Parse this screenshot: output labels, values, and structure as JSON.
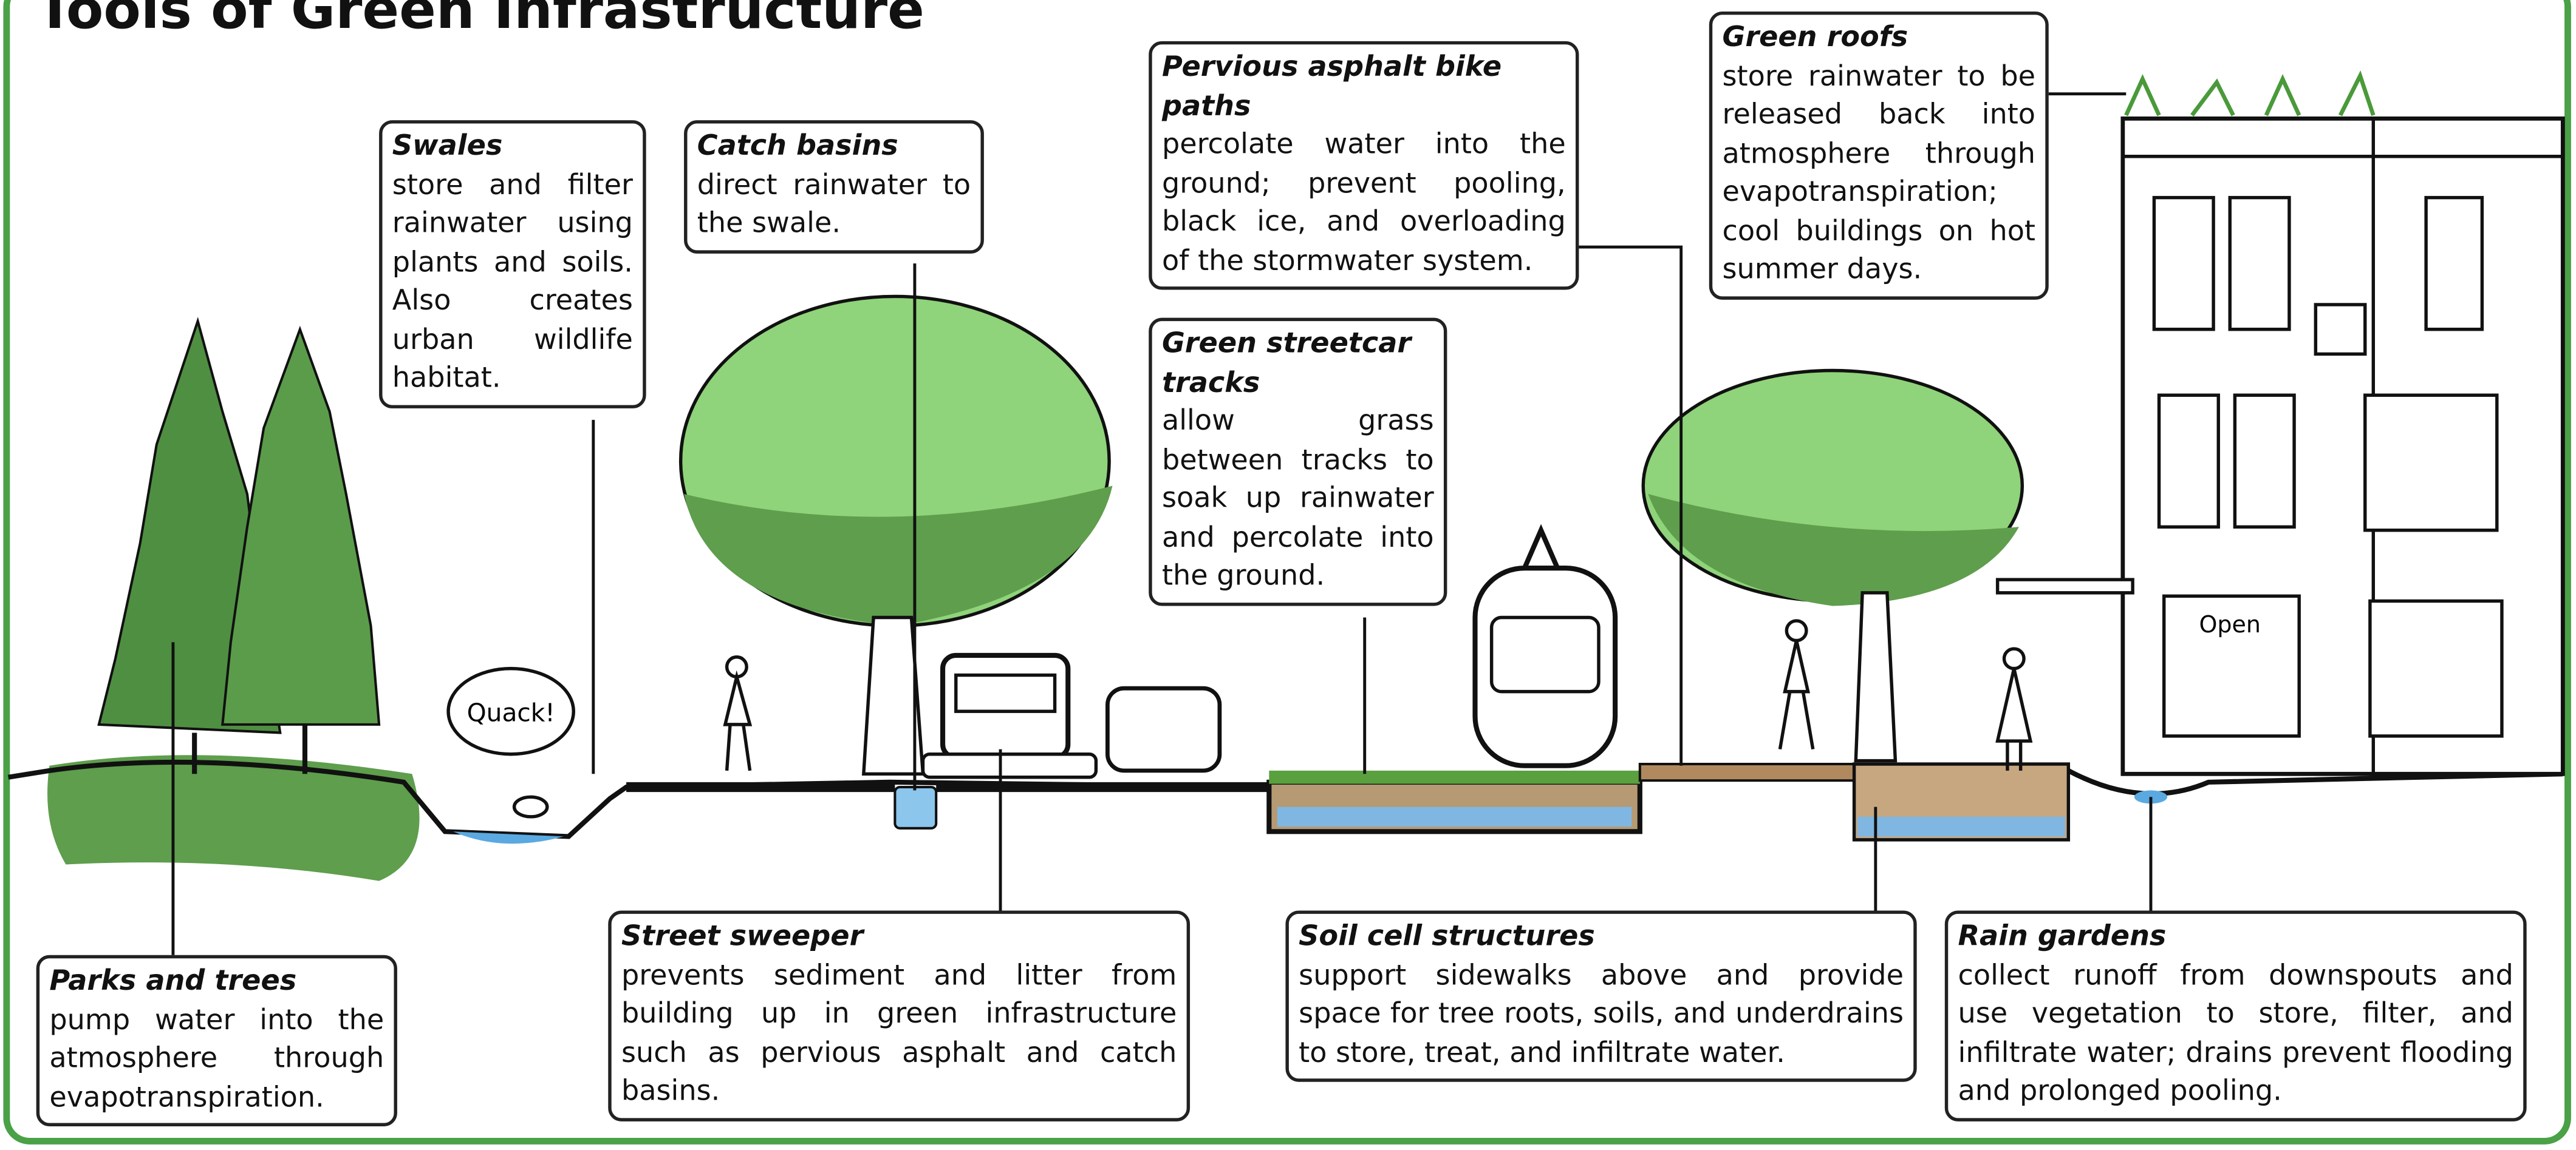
{
  "title": "Tools of Green Infrastructure",
  "callouts": [
    {
      "name": "Swales",
      "description": "store and filter rainwater using plants and soils. Also creates urban wildlife habitat."
    },
    {
      "name": "Catch basins",
      "description": "direct rainwater to the swale."
    },
    {
      "name": "Pervious asphalt bike paths",
      "description": "percolate water into the ground; prevent pooling, black ice, and overloading of the stormwater system."
    },
    {
      "name": "Green streetcar tracks",
      "description": "allow grass between tracks to soak up rainwater and percolate into the ground."
    },
    {
      "name": "Green roofs",
      "description": "store rainwater to be released back into atmosphere through evapotranspiration; cool buildings on hot summer days."
    },
    {
      "name": "Parks and trees",
      "description": "pump water into the atmosphere through evapotranspiration."
    },
    {
      "name": "Street sweeper",
      "description": "prevents sediment and litter from building up in green infrastructure such as pervious asphalt and catch basins."
    },
    {
      "name": "Soil cell structures",
      "description": "support sidewalks above and provide space for tree roots, soils, and underdrains to store, treat, and infiltrate water."
    },
    {
      "name": "Rain gardens",
      "description": "collect runoff from downspouts and use vegetation to store, filter, and infiltrate water; drains prevent flooding and prolonged pooling."
    }
  ]
}
